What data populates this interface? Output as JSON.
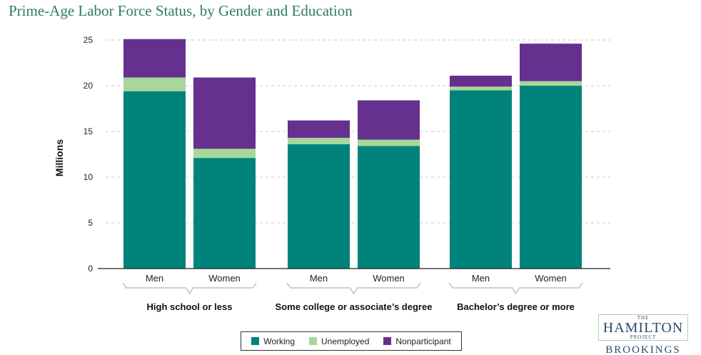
{
  "chart_data": {
    "type": "bar",
    "stacked": true,
    "title": "Prime-Age Labor Force Status, by Gender and Education",
    "ylabel": "Millions",
    "xlabel": "",
    "ylim": [
      0,
      25
    ],
    "yticks": [
      0,
      5,
      10,
      15,
      20,
      25
    ],
    "groups": [
      {
        "label": "High school or less",
        "categories": [
          "Men",
          "Women"
        ]
      },
      {
        "label": "Some college or associate’s degree",
        "categories": [
          "Men",
          "Women"
        ]
      },
      {
        "label": "Bachelor’s degree or more",
        "categories": [
          "Men",
          "Women"
        ]
      }
    ],
    "series": [
      {
        "name": "Working",
        "color": "#00837a",
        "values": [
          19.4,
          12.1,
          13.6,
          13.4,
          19.5,
          20.0
        ]
      },
      {
        "name": "Unemployed",
        "color": "#a7d79a",
        "values": [
          1.5,
          1.0,
          0.7,
          0.7,
          0.4,
          0.5
        ]
      },
      {
        "name": "Nonparticipant",
        "color": "#66308e",
        "values": [
          4.2,
          7.8,
          1.9,
          4.3,
          1.2,
          4.1
        ]
      }
    ],
    "legend": "bottom-center",
    "grid": "horizontal-dashed"
  },
  "logo": {
    "top": "THE",
    "main": "HAMILTON",
    "sub": "PROJECT",
    "org": "BROOKINGS"
  }
}
